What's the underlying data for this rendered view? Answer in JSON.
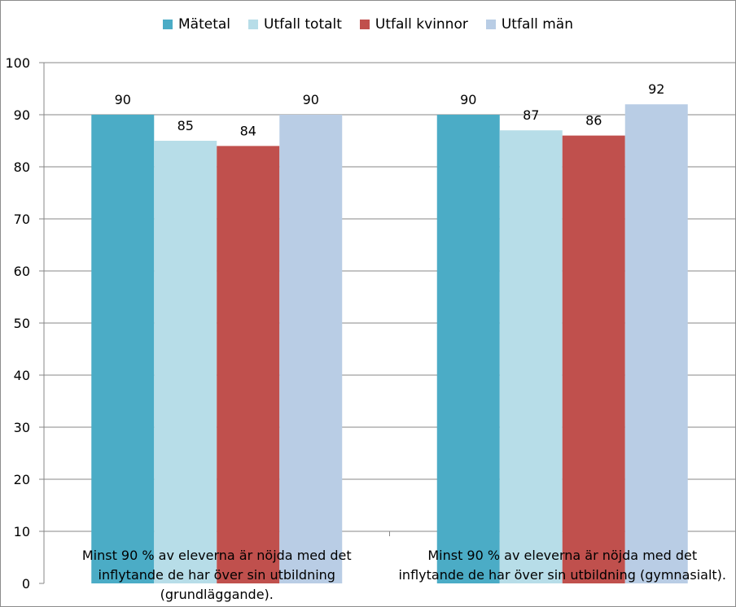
{
  "chart_data": {
    "type": "bar",
    "categories": [
      [
        "Minst 90 % av eleverna är nöjda med det",
        "inflytande de har över sin utbildning",
        "(grundläggande)."
      ],
      [
        "Minst 90 % av eleverna är nöjda med det",
        "inflytande de har över sin utbildning (gymnasialt)."
      ]
    ],
    "series": [
      {
        "name": "Mätetal",
        "color": "#4bacc6",
        "values": [
          90,
          90
        ]
      },
      {
        "name": "Utfall totalt",
        "color": "#b7dde8",
        "values": [
          85,
          87
        ]
      },
      {
        "name": "Utfall kvinnor",
        "color": "#c0504d",
        "values": [
          84,
          86
        ]
      },
      {
        "name": "Utfall män",
        "color": "#b9cde5",
        "values": [
          90,
          92
        ]
      }
    ],
    "yticks": [
      "0",
      "10",
      "20",
      "30",
      "40",
      "50",
      "60",
      "70",
      "80",
      "90",
      "100"
    ],
    "ylim": [
      0,
      100
    ],
    "grid": true,
    "legend_position": "top"
  }
}
